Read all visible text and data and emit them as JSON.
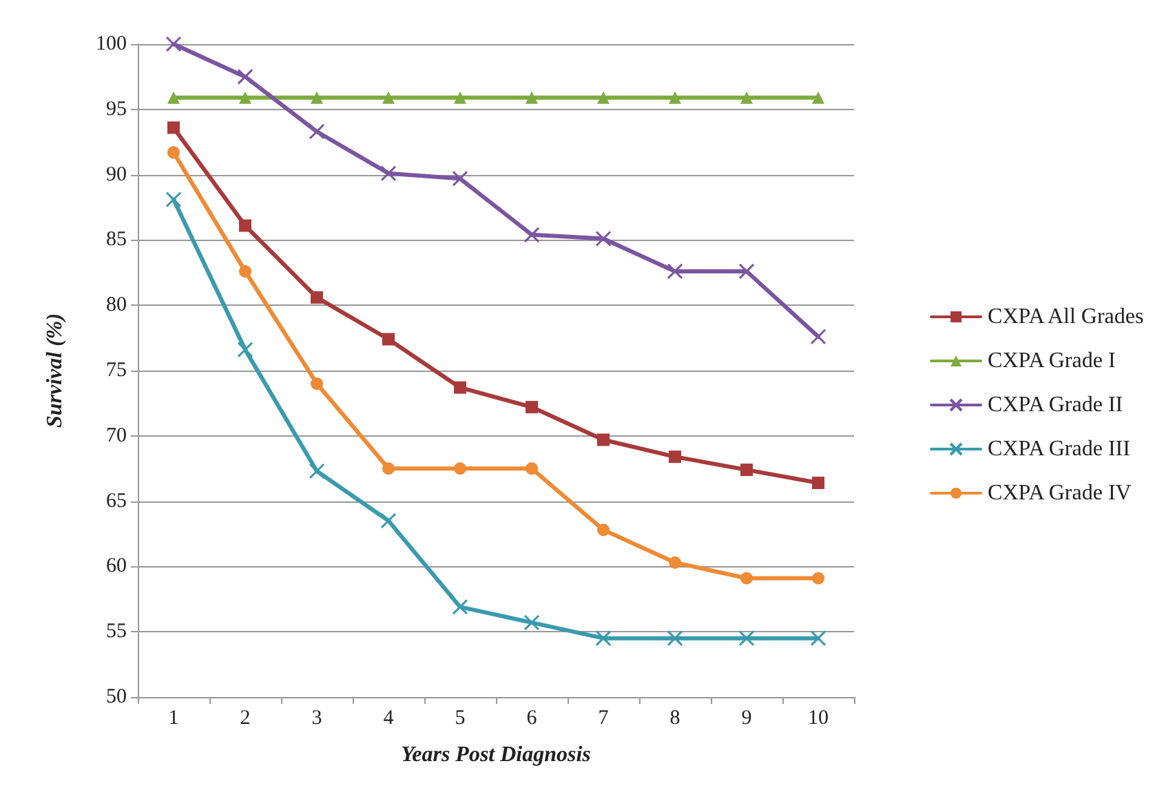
{
  "chart_data": {
    "type": "line",
    "xlabel": "Years Post Diagnosis",
    "ylabel": "Survival (%)",
    "categories": [
      "1",
      "2",
      "3",
      "4",
      "5",
      "6",
      "7",
      "8",
      "9",
      "10"
    ],
    "series": [
      {
        "name": "CXPA All Grades",
        "color": "#a83a3a",
        "marker": "square",
        "values": [
          93.6,
          86.1,
          80.6,
          77.4,
          73.7,
          72.2,
          69.7,
          68.4,
          67.4,
          66.4
        ]
      },
      {
        "name": "CXPA Grade I",
        "color": "#7eab3f",
        "marker": "triangle",
        "values": [
          95.9,
          95.9,
          95.9,
          95.9,
          95.9,
          95.9,
          95.9,
          95.9,
          95.9,
          95.9
        ]
      },
      {
        "name": "CXPA Grade II",
        "color": "#7a55a0",
        "marker": "cross",
        "values": [
          100,
          97.5,
          93.3,
          90.1,
          89.7,
          85.4,
          85.1,
          82.6,
          82.6,
          77.6
        ]
      },
      {
        "name": "CXPA Grade III",
        "color": "#3a9aae",
        "marker": "cross",
        "values": [
          88.1,
          76.6,
          67.3,
          63.5,
          56.9,
          55.7,
          54.5,
          54.5,
          54.5,
          54.5
        ]
      },
      {
        "name": "CXPA Grade IV",
        "color": "#ef8a35",
        "marker": "circle",
        "values": [
          91.7,
          82.6,
          74.0,
          67.5,
          67.5,
          67.5,
          62.8,
          60.3,
          59.1,
          59.1
        ]
      }
    ],
    "ylim": [
      50,
      100
    ],
    "yticks": [
      50,
      55,
      60,
      65,
      70,
      75,
      80,
      85,
      90,
      95,
      100
    ],
    "grid": "y",
    "legend": "right"
  }
}
